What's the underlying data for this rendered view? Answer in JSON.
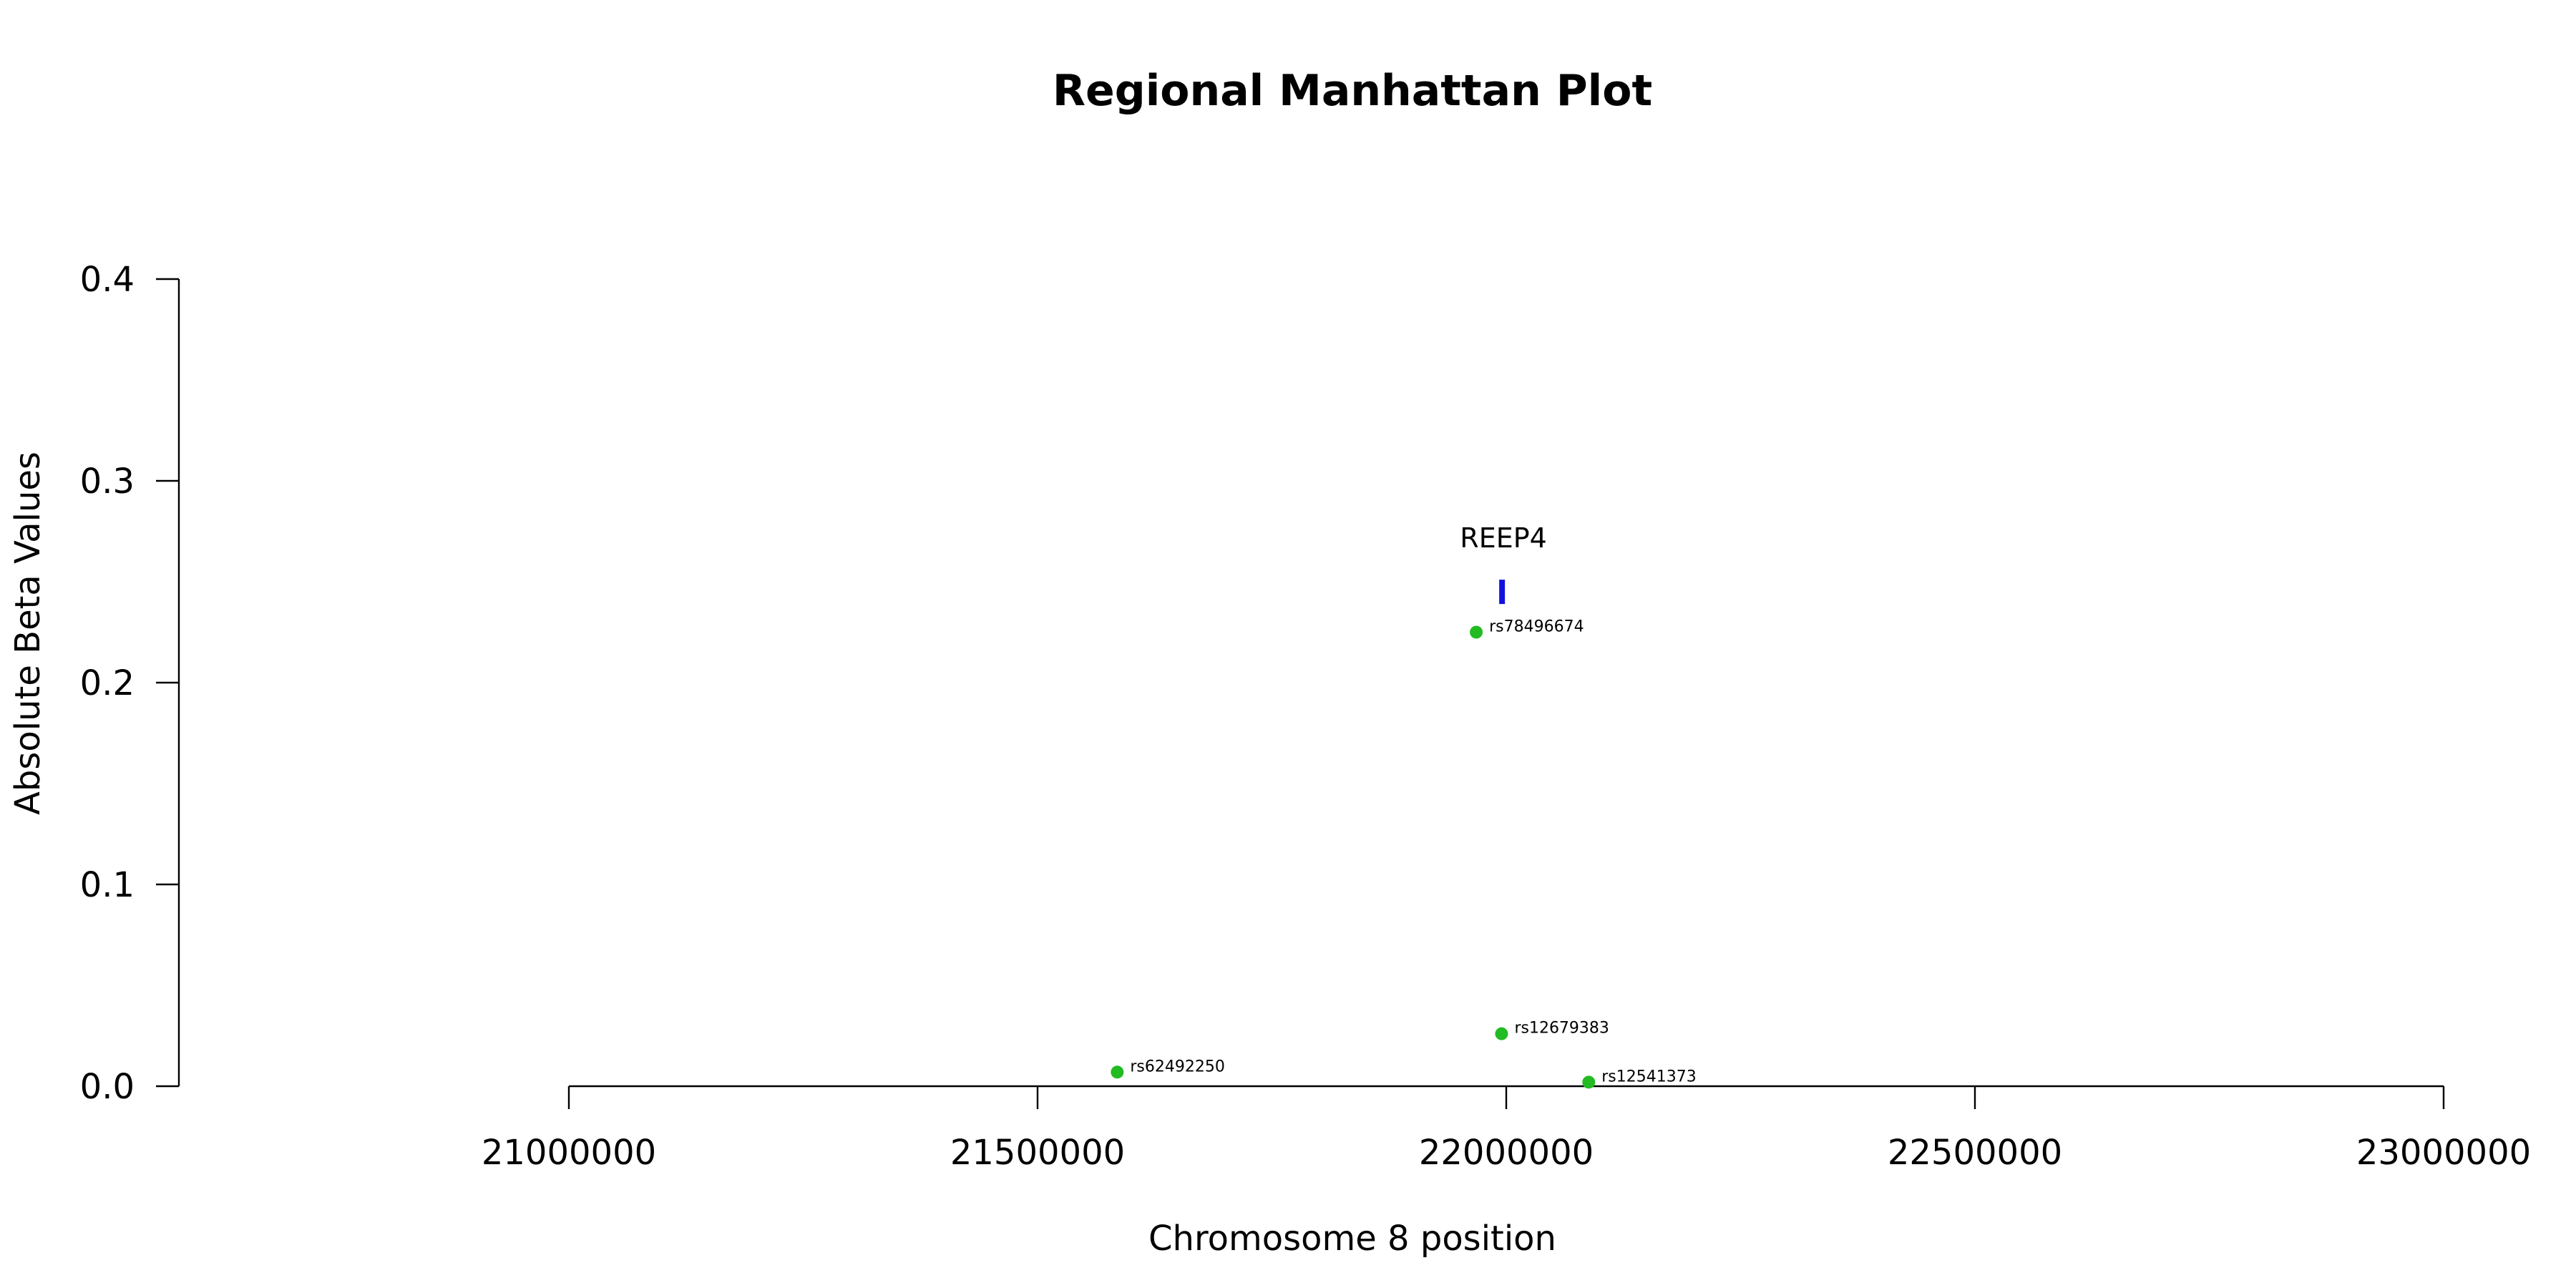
{
  "chart_data": {
    "type": "scatter",
    "title": "Regional Manhattan Plot",
    "xlabel": "Chromosome 8 position",
    "ylabel": "Absolute Beta Values",
    "xlim": [
      21000000,
      23000000
    ],
    "ylim": [
      0,
      0.4
    ],
    "x_ticks": [
      "21000000",
      "21500000",
      "22000000",
      "22500000",
      "23000000"
    ],
    "y_ticks": [
      "0.0",
      "0.1",
      "0.2",
      "0.3",
      "0.4"
    ],
    "grid": false,
    "point_color": "#22bb22",
    "points": [
      {
        "label": "rs62492250",
        "x": 21585000,
        "y": 0.007
      },
      {
        "label": "rs78496674",
        "x": 21968000,
        "y": 0.225
      },
      {
        "label": "rs12679383",
        "x": 21995000,
        "y": 0.026
      },
      {
        "label": "rs12541373",
        "x": 22088000,
        "y": 0.002
      }
    ],
    "genes": [
      {
        "name": "REEP4",
        "start": 21994000,
        "end": 22000000,
        "y": 0.245,
        "color": "#1111dd"
      }
    ]
  }
}
